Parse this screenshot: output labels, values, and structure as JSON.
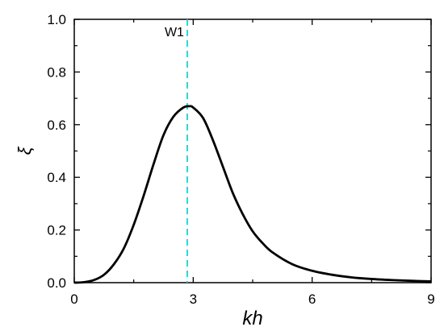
{
  "chart_data": {
    "type": "line",
    "xlabel": "kh",
    "ylabel": "ξ",
    "xlim": [
      0,
      9
    ],
    "ylim": [
      0,
      1.0
    ],
    "x_ticks": [
      0,
      3,
      6,
      9
    ],
    "x_tick_labels": [
      "0",
      "3",
      "6",
      "9"
    ],
    "y_ticks": [
      0,
      0.2,
      0.4,
      0.6,
      0.8,
      1.0
    ],
    "y_tick_labels": [
      "0.0",
      "0.2",
      "0.4",
      "0.6",
      "0.8",
      "1.0"
    ],
    "grid": false,
    "series": [
      {
        "color": "#000000",
        "x": [
          0,
          0.25,
          0.5,
          0.75,
          1.0,
          1.25,
          1.5,
          1.75,
          2.0,
          2.25,
          2.5,
          2.75,
          2.9,
          3.0,
          3.25,
          3.5,
          3.75,
          4.0,
          4.25,
          4.5,
          4.75,
          5.0,
          5.5,
          6.0,
          6.5,
          7.0,
          7.5,
          8.0,
          8.5,
          9.0
        ],
        "y": [
          0.0,
          0.002,
          0.01,
          0.03,
          0.07,
          0.13,
          0.22,
          0.33,
          0.45,
          0.56,
          0.63,
          0.665,
          0.67,
          0.665,
          0.625,
          0.54,
          0.44,
          0.34,
          0.26,
          0.195,
          0.15,
          0.115,
          0.07,
          0.045,
          0.03,
          0.02,
          0.014,
          0.01,
          0.007,
          0.005
        ]
      }
    ],
    "annotations": [
      {
        "type": "vline",
        "x": 2.85,
        "color": "#00e5e5",
        "style": "dashed",
        "label": "W1"
      }
    ]
  }
}
